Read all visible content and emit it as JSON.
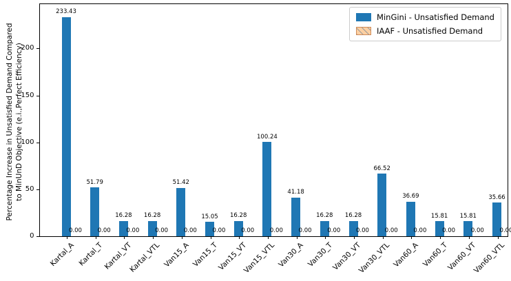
{
  "chart_data": {
    "type": "bar",
    "title": "",
    "ylabel_line1": "Percentage Increase in Unsatisfied Demand Compared",
    "ylabel_line2": "to MinUnD Objective (e.i.,Perfect Efficiency)",
    "xlabel": "",
    "categories": [
      "Kartal_A",
      "Kartal_T",
      "Kartal_VT",
      "Kartal_VTL",
      "Van15_A",
      "Van15_T",
      "Van15_VT",
      "Van15_VTL",
      "Van30_A",
      "Van30_T",
      "Van30_VT",
      "Van30_VTL",
      "Van60_A",
      "Van60_T",
      "Van60_VT",
      "Van60_VTL"
    ],
    "series": [
      {
        "name": "MinGini - Unsatisfied Demand",
        "color": "#1f77b4",
        "values": [
          233.43,
          51.79,
          16.28,
          16.28,
          51.42,
          15.05,
          16.28,
          100.24,
          41.18,
          16.28,
          16.28,
          66.52,
          36.69,
          15.81,
          15.81,
          35.66
        ]
      },
      {
        "name": "IAAF - Unsatisfied Demand",
        "color": "#fdd0a2",
        "edge_color": "#cf8b58",
        "hatch": "/",
        "values": [
          0.0,
          0.0,
          0.0,
          0.0,
          0.0,
          0.0,
          0.0,
          0.0,
          0.0,
          0.0,
          0.0,
          0.0,
          0.0,
          0.0,
          0.0,
          0.0
        ]
      }
    ],
    "bar_label_decimals": 2,
    "yticks": [
      0,
      50,
      100,
      150,
      200
    ],
    "ylim": [
      0,
      248
    ],
    "grid": false,
    "legend_position": "upper right",
    "axis_color": "#000000",
    "background_color": "#ffffff"
  }
}
